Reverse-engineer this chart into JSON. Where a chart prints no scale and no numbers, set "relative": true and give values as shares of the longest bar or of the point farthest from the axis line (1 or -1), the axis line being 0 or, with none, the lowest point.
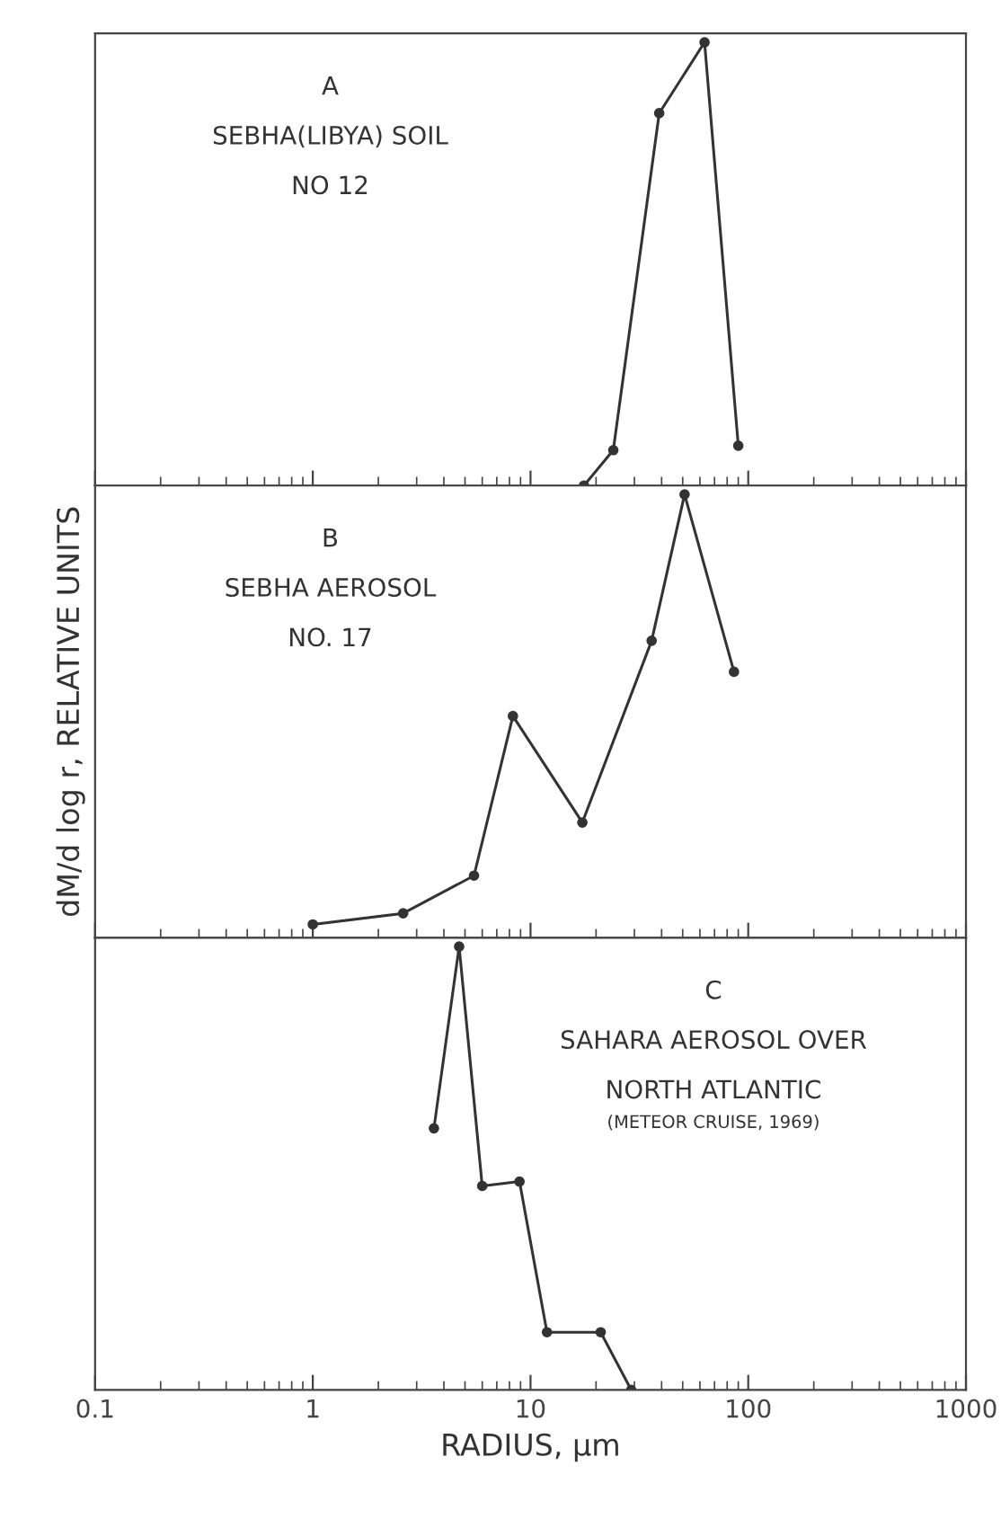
{
  "chart_data": [
    {
      "type": "line",
      "relative": true,
      "annotations": [
        "A",
        "SEBHA(LIBYA) SOIL",
        "NO 12"
      ],
      "log": "x",
      "xlim": [
        0.1,
        1000
      ],
      "xticks": [
        0.1,
        1,
        10,
        100,
        1000
      ],
      "tick_labels": false,
      "marker": "circle",
      "line_style": "solid",
      "grid": false,
      "legend": false,
      "series": [
        {
          "color": "#333333",
          "x": [
            17.6,
            24,
            39,
            63,
            90
          ],
          "values": [
            0,
            0.08,
            0.84,
            1,
            0.09
          ]
        }
      ]
    },
    {
      "type": "line",
      "relative": true,
      "annotations": [
        "B",
        "SEBHA AEROSOL",
        "NO. 17"
      ],
      "ylabel": "dM/d log r, RELATIVE UNITS",
      "log": "x",
      "xlim": [
        0.1,
        1000
      ],
      "xticks": [
        0.1,
        1,
        10,
        100,
        1000
      ],
      "tick_labels": false,
      "marker": "circle",
      "line_style": "solid",
      "grid": false,
      "legend": false,
      "series": [
        {
          "color": "#333333",
          "x": [
            1.0,
            2.6,
            5.5,
            8.3,
            17.3,
            36,
            51,
            86
          ],
          "values": [
            0.03,
            0.055,
            0.14,
            0.5,
            0.26,
            0.67,
            1,
            0.6
          ]
        }
      ]
    },
    {
      "type": "line",
      "relative": true,
      "annotations": [
        "C",
        "SAHARA AEROSOL OVER",
        "NORTH ATLANTIC",
        "(METEOR CRUISE, 1969)"
      ],
      "xlabel": "RADIUS, µm",
      "log": "x",
      "xlim": [
        0.1,
        1000
      ],
      "xticks": [
        {
          "value": 0.1,
          "label": "0.1"
        },
        1,
        10,
        100,
        1000
      ],
      "tick_labels": "x",
      "marker": "circle",
      "line_style": "solid",
      "grid": false,
      "legend": false,
      "series": [
        {
          "color": "#333333",
          "x": [
            3.6,
            4.7,
            6.0,
            8.9,
            11.9,
            21,
            29
          ],
          "values": [
            0.59,
            1,
            0.46,
            0.47,
            0.13,
            0.13,
            0
          ]
        }
      ]
    }
  ]
}
